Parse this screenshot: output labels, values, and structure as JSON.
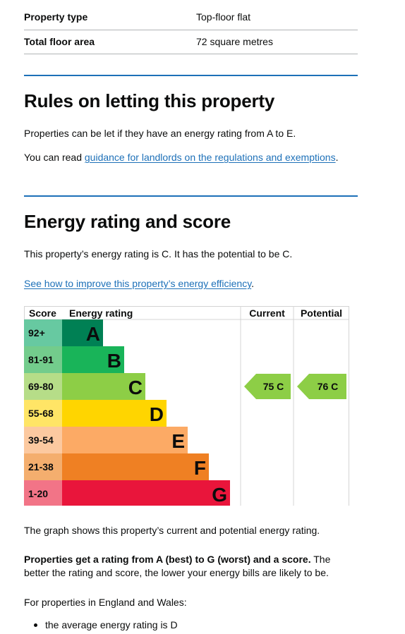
{
  "summary": [
    {
      "key": "Property type",
      "value": "Top-floor flat"
    },
    {
      "key": "Total floor area",
      "value": "72 square metres"
    }
  ],
  "letting": {
    "heading": "Rules on letting this property",
    "para1": "Properties can be let if they have an energy rating from A to E.",
    "para2_prefix": "You can read ",
    "para2_link": "guidance for landlords on the regulations and exemptions",
    "para2_suffix": "."
  },
  "energy": {
    "heading": "Energy rating and score",
    "rating_text": "This property’s energy rating is C. It has the potential to be C.",
    "improve_link": "See how to improve this property’s energy efficiency",
    "improve_suffix": "."
  },
  "chart_data": {
    "type": "table",
    "headers": {
      "score": "Score",
      "rating": "Energy rating",
      "current": "Current",
      "potential": "Potential"
    },
    "bands": [
      {
        "score": "92+",
        "letter": "A",
        "color": "#008054",
        "score_color": "#67c9a1"
      },
      {
        "score": "81-91",
        "letter": "B",
        "color": "#19b459",
        "score_color": "#73cc8c"
      },
      {
        "score": "69-80",
        "letter": "C",
        "color": "#8dce46",
        "score_color": "#b6dd88"
      },
      {
        "score": "55-68",
        "letter": "D",
        "color": "#ffd500",
        "score_color": "#ffe566"
      },
      {
        "score": "39-54",
        "letter": "E",
        "color": "#fcaa65",
        "score_color": "#fcc9a0"
      },
      {
        "score": "21-38",
        "letter": "F",
        "color": "#ef8023",
        "score_color": "#f4ae6e"
      },
      {
        "score": "1-20",
        "letter": "G",
        "color": "#e9153b",
        "score_color": "#f27487"
      }
    ],
    "current": {
      "score": 75,
      "letter": "C",
      "label": "75  C",
      "color": "#8dce46"
    },
    "potential": {
      "score": 76,
      "letter": "C",
      "label": "76  C",
      "color": "#8dce46"
    }
  },
  "after_chart": {
    "graph_text": "The graph shows this property’s current and potential energy rating.",
    "bold_text": "Properties get a rating from A (best) to G (worst) and a score.",
    "rest_text": " The better the rating and score, the lower your energy bills are likely to be.",
    "region_text": "For properties in England and Wales:",
    "bullets": [
      "the average energy rating is D"
    ]
  }
}
